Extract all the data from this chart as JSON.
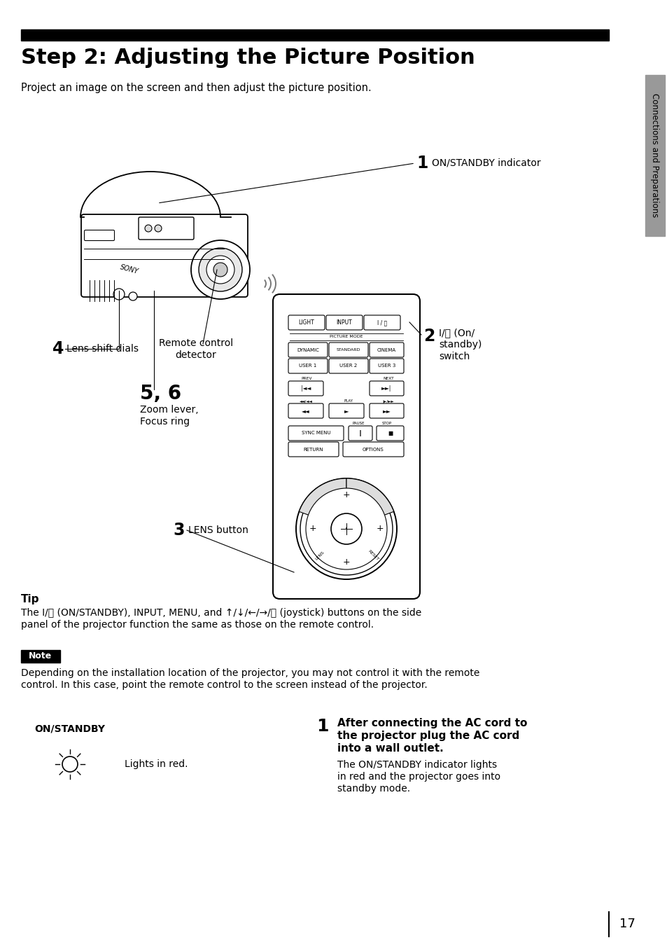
{
  "title": "Step 2: Adjusting the Picture Position",
  "subtitle": "Project an image on the screen and then adjust the picture position.",
  "sidebar_text": "Connections and Preparations",
  "sidebar_color": "#999999",
  "black_bar_color": "#000000",
  "background_color": "#ffffff",
  "tip_title": "Tip",
  "tip_body_line1": "The I/⏽ (ON/STANDBY), INPUT, MENU, and ↑/↓/←/→/ⓨ (joystick) buttons on the side",
  "tip_body_line2": "panel of the projector function the same as those on the remote control.",
  "note_label": "Note",
  "note_body_line1": "Depending on the installation location of the projector, you may not control it with the remote",
  "note_body_line2": "control. In this case, point the remote control to the screen instead of the projector.",
  "label_1_num": "1",
  "label_1": "ON/STANDBY indicator",
  "label_2_num": "2",
  "label_2_line1": "I/⏽ (On/",
  "label_2_line2": "standby)",
  "label_2_line3": "switch",
  "label_3_num": "3",
  "label_3": "LENS button",
  "label_4_num": "4",
  "label_4": "Lens shift dials",
  "label_56_num": "5, 6",
  "label_56_line1": "Zoom lever,",
  "label_56_line2": "Focus ring",
  "remote_ctrl_detector_line1": "Remote control",
  "remote_ctrl_detector_line2": "detector",
  "step1_num": "1",
  "step1_bold_line1": "After connecting the AC cord to",
  "step1_bold_line2": "the projector plug the AC cord",
  "step1_bold_line3": "into a wall outlet.",
  "step1_body_line1": "The ON/STANDBY indicator lights",
  "step1_body_line2": "in red and the projector goes into",
  "step1_body_line3": "standby mode.",
  "on_standby_label": "ON/STANDBY",
  "lights_in_red": "Lights in red.",
  "page_number": "17"
}
